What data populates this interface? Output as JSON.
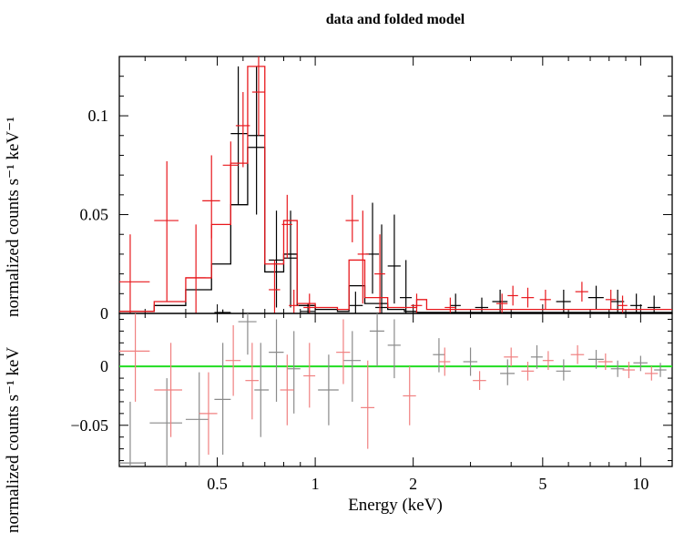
{
  "chart_data": [
    {
      "type": "scatter",
      "title": "data and folded model",
      "xlabel": "Energy (keV)",
      "ylabel": "normalized counts s⁻¹ keV⁻¹",
      "x_scale": "log",
      "xlim": [
        0.25,
        12.5
      ],
      "ylim": [
        0,
        0.13
      ],
      "yticks": [
        0,
        0.05,
        0.1
      ],
      "ytick_labels": [
        "0",
        "0.05",
        "0.1"
      ],
      "series": [
        {
          "color": "#000000",
          "style": "crosses",
          "points": [
            {
              "x": 0.52,
              "xlo": 0.49,
              "xhi": 0.55,
              "y": 0.0005,
              "ylo": 0.0,
              "yhi": 0.002
            },
            {
              "x": 0.58,
              "xlo": 0.55,
              "xhi": 0.62,
              "y": 0.091,
              "ylo": 0.055,
              "yhi": 0.125
            },
            {
              "x": 0.66,
              "xlo": 0.62,
              "xhi": 0.7,
              "y": 0.09,
              "ylo": 0.05,
              "yhi": 0.125
            },
            {
              "x": 0.76,
              "xlo": 0.72,
              "xhi": 0.8,
              "y": 0.027,
              "ylo": 0.003,
              "yhi": 0.052
            },
            {
              "x": 0.84,
              "xlo": 0.8,
              "xhi": 0.88,
              "y": 0.028,
              "ylo": 0.003,
              "yhi": 0.052
            },
            {
              "x": 0.95,
              "xlo": 0.9,
              "xhi": 1.0,
              "y": 0.001,
              "ylo": 0.0,
              "yhi": 0.005
            },
            {
              "x": 1.33,
              "xlo": 1.27,
              "xhi": 1.4,
              "y": 0.004,
              "ylo": 0.0,
              "yhi": 0.011
            },
            {
              "x": 1.5,
              "xlo": 1.43,
              "xhi": 1.57,
              "y": 0.03,
              "ylo": 0.01,
              "yhi": 0.056
            },
            {
              "x": 1.6,
              "xlo": 1.53,
              "xhi": 1.68,
              "y": 0.003,
              "ylo": 0.0,
              "yhi": 0.045
            },
            {
              "x": 1.75,
              "xlo": 1.67,
              "xhi": 1.83,
              "y": 0.024,
              "ylo": 0.005,
              "yhi": 0.05
            },
            {
              "x": 1.9,
              "xlo": 1.82,
              "xhi": 1.98,
              "y": 0.008,
              "ylo": 0.0,
              "yhi": 0.027
            },
            {
              "x": 2.7,
              "xlo": 2.6,
              "xhi": 2.8,
              "y": 0.004,
              "ylo": 0.0,
              "yhi": 0.01
            },
            {
              "x": 3.25,
              "xlo": 3.1,
              "xhi": 3.4,
              "y": 0.003,
              "ylo": 0.0,
              "yhi": 0.008
            },
            {
              "x": 3.7,
              "xlo": 3.5,
              "xhi": 3.9,
              "y": 0.006,
              "ylo": 0.0,
              "yhi": 0.012
            },
            {
              "x": 5.8,
              "xlo": 5.5,
              "xhi": 6.1,
              "y": 0.006,
              "ylo": 0.0,
              "yhi": 0.012
            },
            {
              "x": 7.3,
              "xlo": 6.9,
              "xhi": 7.7,
              "y": 0.008,
              "ylo": 0.002,
              "yhi": 0.014
            },
            {
              "x": 8.5,
              "xlo": 8.1,
              "xhi": 8.9,
              "y": 0.006,
              "ylo": 0.0,
              "yhi": 0.012
            },
            {
              "x": 9.7,
              "xlo": 9.3,
              "xhi": 10.1,
              "y": 0.004,
              "ylo": 0.0,
              "yhi": 0.01
            },
            {
              "x": 11.0,
              "xlo": 10.5,
              "xhi": 11.5,
              "y": 0.003,
              "ylo": 0.0,
              "yhi": 0.009
            }
          ],
          "model_steps": [
            {
              "e": 0.25,
              "v": 0.001
            },
            {
              "e": 0.32,
              "v": 0.004
            },
            {
              "e": 0.4,
              "v": 0.012
            },
            {
              "e": 0.48,
              "v": 0.025
            },
            {
              "e": 0.55,
              "v": 0.055
            },
            {
              "e": 0.62,
              "v": 0.084
            },
            {
              "e": 0.7,
              "v": 0.021
            },
            {
              "e": 0.8,
              "v": 0.03
            },
            {
              "e": 0.88,
              "v": 0.004
            },
            {
              "e": 1.0,
              "v": 0.002
            },
            {
              "e": 1.17,
              "v": 0.001
            },
            {
              "e": 1.27,
              "v": 0.014
            },
            {
              "e": 1.42,
              "v": 0.005
            },
            {
              "e": 1.67,
              "v": 0.002
            },
            {
              "e": 1.88,
              "v": 0.001
            },
            {
              "e": 2.05,
              "v": 0.0005
            },
            {
              "e": 12.5,
              "v": 0.0005
            }
          ]
        },
        {
          "color": "#e8181d",
          "style": "crosses",
          "points": [
            {
              "x": 0.27,
              "xlo": 0.25,
              "xhi": 0.31,
              "y": 0.016,
              "ylo": 0.0,
              "yhi": 0.04
            },
            {
              "x": 0.35,
              "xlo": 0.32,
              "xhi": 0.38,
              "y": 0.047,
              "ylo": 0.006,
              "yhi": 0.077
            },
            {
              "x": 0.43,
              "xlo": 0.4,
              "xhi": 0.46,
              "y": 0.018,
              "ylo": 0.0,
              "yhi": 0.045
            },
            {
              "x": 0.48,
              "xlo": 0.45,
              "xhi": 0.51,
              "y": 0.057,
              "ylo": 0.038,
              "yhi": 0.08
            },
            {
              "x": 0.55,
              "xlo": 0.52,
              "xhi": 0.58,
              "y": 0.075,
              "ylo": 0.055,
              "yhi": 0.087
            },
            {
              "x": 0.6,
              "xlo": 0.57,
              "xhi": 0.63,
              "y": 0.095,
              "ylo": 0.074,
              "yhi": 0.112
            },
            {
              "x": 0.67,
              "xlo": 0.64,
              "xhi": 0.7,
              "y": 0.112,
              "ylo": 0.09,
              "yhi": 0.13
            },
            {
              "x": 0.75,
              "xlo": 0.72,
              "xhi": 0.78,
              "y": 0.012,
              "ylo": 0.0,
              "yhi": 0.027
            },
            {
              "x": 0.82,
              "xlo": 0.79,
              "xhi": 0.85,
              "y": 0.045,
              "ylo": 0.028,
              "yhi": 0.06
            },
            {
              "x": 0.86,
              "xlo": 0.83,
              "xhi": 0.89,
              "y": 0.004,
              "ylo": 0.0,
              "yhi": 0.012
            },
            {
              "x": 0.96,
              "xlo": 0.92,
              "xhi": 1.0,
              "y": 0.003,
              "ylo": 0.0,
              "yhi": 0.01
            },
            {
              "x": 1.3,
              "xlo": 1.24,
              "xhi": 1.36,
              "y": 0.047,
              "ylo": 0.036,
              "yhi": 0.06
            },
            {
              "x": 1.4,
              "xlo": 1.35,
              "xhi": 1.46,
              "y": 0.03,
              "ylo": 0.005,
              "yhi": 0.052
            },
            {
              "x": 1.58,
              "xlo": 1.52,
              "xhi": 1.64,
              "y": 0.02,
              "ylo": 0.0,
              "yhi": 0.04
            },
            {
              "x": 2.05,
              "xlo": 1.97,
              "xhi": 2.13,
              "y": 0.004,
              "ylo": 0.0,
              "yhi": 0.01
            },
            {
              "x": 2.6,
              "xlo": 2.5,
              "xhi": 2.7,
              "y": 0.003,
              "ylo": 0.0,
              "yhi": 0.008
            },
            {
              "x": 3.75,
              "xlo": 3.6,
              "xhi": 3.9,
              "y": 0.005,
              "ylo": 0.0,
              "yhi": 0.01
            },
            {
              "x": 4.05,
              "xlo": 3.9,
              "xhi": 4.2,
              "y": 0.009,
              "ylo": 0.004,
              "yhi": 0.014
            },
            {
              "x": 4.5,
              "xlo": 4.3,
              "xhi": 4.7,
              "y": 0.008,
              "ylo": 0.003,
              "yhi": 0.013
            },
            {
              "x": 5.1,
              "xlo": 4.9,
              "xhi": 5.3,
              "y": 0.007,
              "ylo": 0.002,
              "yhi": 0.012
            },
            {
              "x": 6.6,
              "xlo": 6.3,
              "xhi": 6.9,
              "y": 0.011,
              "ylo": 0.006,
              "yhi": 0.016
            },
            {
              "x": 8.1,
              "xlo": 7.8,
              "xhi": 8.4,
              "y": 0.007,
              "ylo": 0.002,
              "yhi": 0.012
            },
            {
              "x": 8.8,
              "xlo": 8.5,
              "xhi": 9.1,
              "y": 0.004,
              "ylo": 0.0,
              "yhi": 0.009
            }
          ],
          "model_steps": [
            {
              "e": 0.25,
              "v": 0.001
            },
            {
              "e": 0.32,
              "v": 0.006
            },
            {
              "e": 0.4,
              "v": 0.018
            },
            {
              "e": 0.48,
              "v": 0.045
            },
            {
              "e": 0.55,
              "v": 0.076
            },
            {
              "e": 0.62,
              "v": 0.125
            },
            {
              "e": 0.7,
              "v": 0.025
            },
            {
              "e": 0.8,
              "v": 0.047
            },
            {
              "e": 0.88,
              "v": 0.005
            },
            {
              "e": 1.0,
              "v": 0.003
            },
            {
              "e": 1.17,
              "v": 0.002
            },
            {
              "e": 1.27,
              "v": 0.027
            },
            {
              "e": 1.42,
              "v": 0.008
            },
            {
              "e": 1.67,
              "v": 0.003
            },
            {
              "e": 2.05,
              "v": 0.007
            },
            {
              "e": 2.2,
              "v": 0.002
            },
            {
              "e": 12.5,
              "v": 0.001
            }
          ]
        }
      ]
    },
    {
      "type": "scatter",
      "xlabel": "Energy (keV)",
      "ylabel": "normalized counts s⁻¹ keV",
      "x_scale": "log",
      "xlim": [
        0.25,
        12.5
      ],
      "ylim": [
        -0.085,
        0.045
      ],
      "yticks": [
        -0.05,
        0
      ],
      "ytick_labels": [
        "−0.05",
        "0"
      ],
      "xticks": [
        0.5,
        1,
        2,
        5,
        10
      ],
      "xtick_labels": [
        "0.5",
        "1",
        "2",
        "5",
        "10"
      ],
      "zero_line": {
        "y": 0,
        "color": "#22dd22"
      },
      "series": [
        {
          "color": "#8a8a8a",
          "style": "crosses",
          "points": [
            {
              "x": 0.27,
              "xlo": 0.25,
              "xhi": 0.3,
              "y": -0.082,
              "ylo": -0.085,
              "yhi": -0.03
            },
            {
              "x": 0.35,
              "xlo": 0.31,
              "xhi": 0.39,
              "y": -0.048,
              "ylo": -0.085,
              "yhi": -0.01
            },
            {
              "x": 0.44,
              "xlo": 0.4,
              "xhi": 0.47,
              "y": -0.045,
              "ylo": -0.085,
              "yhi": -0.005
            },
            {
              "x": 0.52,
              "xlo": 0.49,
              "xhi": 0.55,
              "y": -0.028,
              "ylo": -0.075,
              "yhi": 0.02
            },
            {
              "x": 0.62,
              "xlo": 0.58,
              "xhi": 0.66,
              "y": 0.038,
              "ylo": 0.01,
              "yhi": 0.045
            },
            {
              "x": 0.68,
              "xlo": 0.65,
              "xhi": 0.72,
              "y": -0.02,
              "ylo": -0.06,
              "yhi": 0.02
            },
            {
              "x": 0.76,
              "xlo": 0.72,
              "xhi": 0.8,
              "y": 0.012,
              "ylo": -0.03,
              "yhi": 0.04
            },
            {
              "x": 0.86,
              "xlo": 0.82,
              "xhi": 0.9,
              "y": -0.002,
              "ylo": -0.04,
              "yhi": 0.03
            },
            {
              "x": 1.1,
              "xlo": 1.02,
              "xhi": 1.18,
              "y": -0.02,
              "ylo": -0.05,
              "yhi": 0.01
            },
            {
              "x": 1.3,
              "xlo": 1.22,
              "xhi": 1.38,
              "y": 0.005,
              "ylo": -0.03,
              "yhi": 0.03
            },
            {
              "x": 1.55,
              "xlo": 1.47,
              "xhi": 1.63,
              "y": 0.03,
              "ylo": 0.0,
              "yhi": 0.045
            },
            {
              "x": 1.75,
              "xlo": 1.67,
              "xhi": 1.83,
              "y": 0.018,
              "ylo": -0.01,
              "yhi": 0.04
            },
            {
              "x": 2.4,
              "xlo": 2.3,
              "xhi": 2.5,
              "y": 0.01,
              "ylo": -0.005,
              "yhi": 0.024
            },
            {
              "x": 3.0,
              "xlo": 2.85,
              "xhi": 3.15,
              "y": 0.004,
              "ylo": -0.008,
              "yhi": 0.016
            },
            {
              "x": 3.9,
              "xlo": 3.7,
              "xhi": 4.1,
              "y": -0.006,
              "ylo": -0.016,
              "yhi": 0.006
            },
            {
              "x": 4.8,
              "xlo": 4.6,
              "xhi": 5.0,
              "y": 0.008,
              "ylo": -0.002,
              "yhi": 0.018
            },
            {
              "x": 5.8,
              "xlo": 5.5,
              "xhi": 6.1,
              "y": -0.004,
              "ylo": -0.012,
              "yhi": 0.006
            },
            {
              "x": 7.3,
              "xlo": 6.9,
              "xhi": 7.7,
              "y": 0.006,
              "ylo": -0.002,
              "yhi": 0.014
            },
            {
              "x": 8.5,
              "xlo": 8.1,
              "xhi": 8.9,
              "y": -0.002,
              "ylo": -0.009,
              "yhi": 0.005
            },
            {
              "x": 10.0,
              "xlo": 9.5,
              "xhi": 10.5,
              "y": 0.003,
              "ylo": -0.004,
              "yhi": 0.009
            },
            {
              "x": 11.5,
              "xlo": 11.0,
              "xhi": 12.0,
              "y": -0.003,
              "ylo": -0.009,
              "yhi": 0.003
            }
          ]
        },
        {
          "color": "#f08080",
          "style": "crosses",
          "points": [
            {
              "x": 0.28,
              "xlo": 0.25,
              "xhi": 0.31,
              "y": 0.013,
              "ylo": -0.03,
              "yhi": 0.045
            },
            {
              "x": 0.36,
              "xlo": 0.32,
              "xhi": 0.39,
              "y": -0.02,
              "ylo": -0.06,
              "yhi": 0.02
            },
            {
              "x": 0.47,
              "xlo": 0.44,
              "xhi": 0.5,
              "y": -0.04,
              "ylo": -0.075,
              "yhi": -0.005
            },
            {
              "x": 0.56,
              "xlo": 0.53,
              "xhi": 0.59,
              "y": 0.005,
              "ylo": -0.025,
              "yhi": 0.035
            },
            {
              "x": 0.64,
              "xlo": 0.61,
              "xhi": 0.67,
              "y": -0.012,
              "ylo": -0.045,
              "yhi": 0.02
            },
            {
              "x": 0.82,
              "xlo": 0.78,
              "xhi": 0.86,
              "y": -0.02,
              "ylo": -0.05,
              "yhi": 0.01
            },
            {
              "x": 0.96,
              "xlo": 0.92,
              "xhi": 1.0,
              "y": -0.008,
              "ylo": -0.035,
              "yhi": 0.02
            },
            {
              "x": 1.22,
              "xlo": 1.16,
              "xhi": 1.28,
              "y": 0.012,
              "ylo": -0.015,
              "yhi": 0.04
            },
            {
              "x": 1.45,
              "xlo": 1.38,
              "xhi": 1.52,
              "y": -0.035,
              "ylo": -0.07,
              "yhi": 0.005
            },
            {
              "x": 1.95,
              "xlo": 1.86,
              "xhi": 2.04,
              "y": -0.025,
              "ylo": -0.05,
              "yhi": 0.0
            },
            {
              "x": 2.5,
              "xlo": 2.4,
              "xhi": 2.6,
              "y": 0.004,
              "ylo": -0.008,
              "yhi": 0.016
            },
            {
              "x": 3.2,
              "xlo": 3.05,
              "xhi": 3.35,
              "y": -0.012,
              "ylo": -0.02,
              "yhi": -0.004
            },
            {
              "x": 4.0,
              "xlo": 3.8,
              "xhi": 4.2,
              "y": 0.008,
              "ylo": 0.0,
              "yhi": 0.016
            },
            {
              "x": 4.5,
              "xlo": 4.3,
              "xhi": 4.7,
              "y": -0.004,
              "ylo": -0.012,
              "yhi": 0.004
            },
            {
              "x": 5.2,
              "xlo": 5.0,
              "xhi": 5.4,
              "y": 0.005,
              "ylo": -0.003,
              "yhi": 0.013
            },
            {
              "x": 6.4,
              "xlo": 6.1,
              "xhi": 6.7,
              "y": 0.01,
              "ylo": 0.002,
              "yhi": 0.018
            },
            {
              "x": 7.8,
              "xlo": 7.4,
              "xhi": 8.2,
              "y": 0.004,
              "ylo": -0.003,
              "yhi": 0.011
            },
            {
              "x": 9.2,
              "xlo": 8.8,
              "xhi": 9.6,
              "y": -0.003,
              "ylo": -0.01,
              "yhi": 0.004
            },
            {
              "x": 10.8,
              "xlo": 10.3,
              "xhi": 11.3,
              "y": -0.006,
              "ylo": -0.012,
              "yhi": 0.0
            }
          ]
        }
      ]
    }
  ]
}
